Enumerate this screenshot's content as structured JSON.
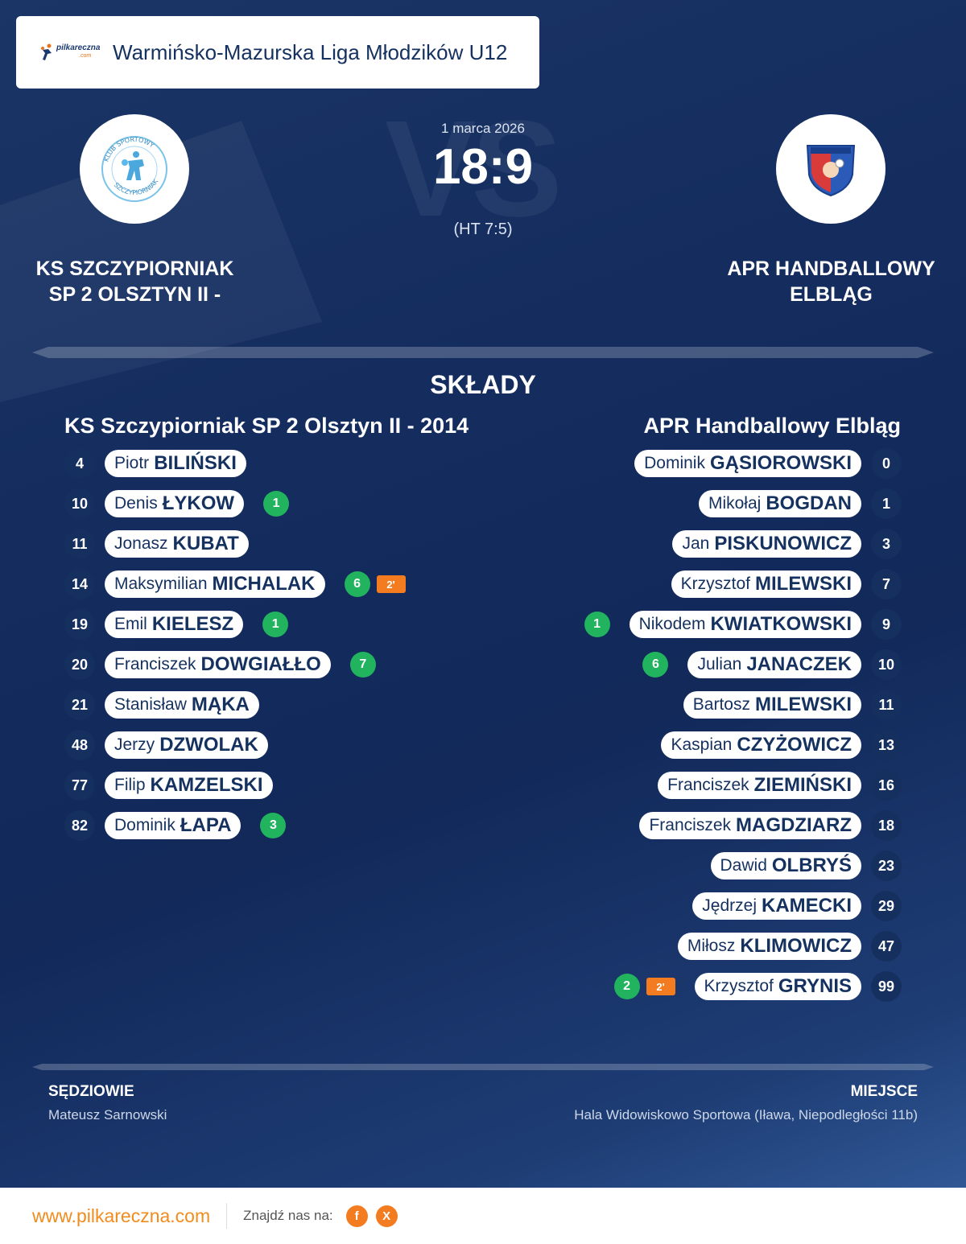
{
  "header": {
    "logo_text": "pilkareczna",
    "logo_sub": ".com",
    "league": "Warmińsko-Mazurska Liga Młodzików U12"
  },
  "match": {
    "date": "1 marca 2026",
    "score": "18:9",
    "halftime": "(HT 7:5)",
    "watermark": "VS"
  },
  "home": {
    "name_line1": "KS SZCZYPIORNIAK",
    "name_line2": "SP 2 OLSZTYN II -",
    "squad_title": "KS Szczypiorniak SP 2 Olsztyn II - 2014",
    "crest_text_top": "KLUB SPORTOWY",
    "crest_text_bottom": "SZCZYPIORNIAK",
    "players": [
      {
        "number": "4",
        "first": "Piotr",
        "last": "BILIŃSKI"
      },
      {
        "number": "10",
        "first": "Denis",
        "last": "ŁYKOW",
        "goals": "1"
      },
      {
        "number": "11",
        "first": "Jonasz",
        "last": "KUBAT"
      },
      {
        "number": "14",
        "first": "Maksymilian",
        "last": "MICHALAK",
        "goals": "6",
        "penalty": "2'"
      },
      {
        "number": "19",
        "first": "Emil",
        "last": "KIELESZ",
        "goals": "1"
      },
      {
        "number": "20",
        "first": "Franciszek",
        "last": "DOWGIAŁŁO",
        "goals": "7"
      },
      {
        "number": "21",
        "first": "Stanisław",
        "last": "MĄKA"
      },
      {
        "number": "48",
        "first": "Jerzy",
        "last": "DZWOLAK"
      },
      {
        "number": "77",
        "first": "Filip",
        "last": "KAMZELSKI"
      },
      {
        "number": "82",
        "first": "Dominik",
        "last": "ŁAPA",
        "goals": "3"
      }
    ]
  },
  "away": {
    "name_line1": "APR HANDBALLOWY",
    "name_line2": "ELBLĄG",
    "squad_title": "APR Handballowy Elbląg",
    "players": [
      {
        "number": "0",
        "first": "Dominik",
        "last": "GĄSIOROWSKI"
      },
      {
        "number": "1",
        "first": "Mikołaj",
        "last": "BOGDAN"
      },
      {
        "number": "3",
        "first": "Jan",
        "last": "PISKUNOWICZ"
      },
      {
        "number": "7",
        "first": "Krzysztof",
        "last": "MILEWSKI"
      },
      {
        "number": "9",
        "first": "Nikodem",
        "last": "KWIATKOWSKI",
        "goals": "1"
      },
      {
        "number": "10",
        "first": "Julian",
        "last": "JANACZEK",
        "goals": "6"
      },
      {
        "number": "11",
        "first": "Bartosz",
        "last": "MILEWSKI"
      },
      {
        "number": "13",
        "first": "Kaspian",
        "last": "CZYŻOWICZ"
      },
      {
        "number": "16",
        "first": "Franciszek",
        "last": "ZIEMIŃSKI"
      },
      {
        "number": "18",
        "first": "Franciszek",
        "last": "MAGDZIARZ"
      },
      {
        "number": "23",
        "first": "Dawid",
        "last": "OLBRYŚ"
      },
      {
        "number": "29",
        "first": "Jędrzej",
        "last": "KAMECKI"
      },
      {
        "number": "47",
        "first": "Miłosz",
        "last": "KLIMOWICZ"
      },
      {
        "number": "99",
        "first": "Krzysztof",
        "last": "GRYNIS",
        "goals": "2",
        "penalty": "2'"
      }
    ]
  },
  "lineups_title": "SKŁADY",
  "officials": {
    "referees_label": "SĘDZIOWIE",
    "referees": "Mateusz Sarnowski",
    "venue_label": "MIEJSCE",
    "venue": "Hala Widowiskowo Sportowa (Iława, Niepodległości 11b)"
  },
  "footer": {
    "site": "www.pilkareczna.com",
    "find_us": "Znajdź nas na:",
    "social": [
      {
        "icon": "facebook-icon",
        "glyph": "f"
      },
      {
        "icon": "x-icon",
        "glyph": "X"
      }
    ]
  },
  "colors": {
    "accent": "#f47c20",
    "navy": "#15305f",
    "goal": "#22b35e"
  }
}
